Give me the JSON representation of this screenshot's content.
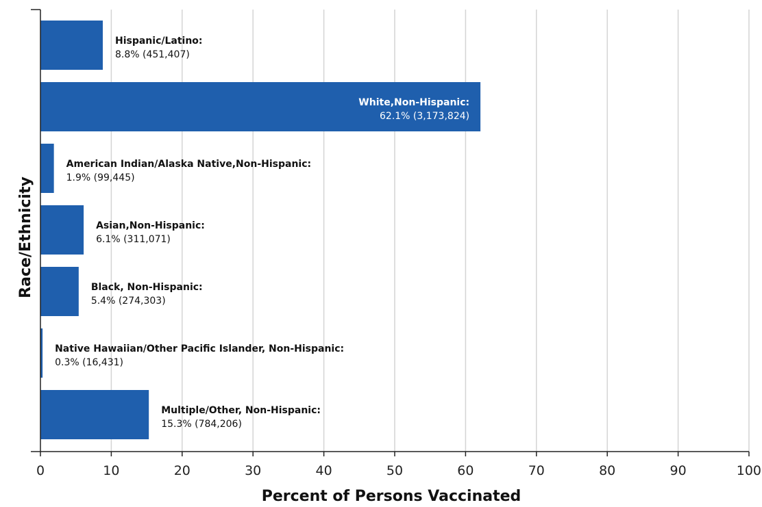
{
  "chart_data": {
    "type": "bar",
    "orientation": "horizontal",
    "title": "",
    "xlabel": "Percent of Persons Vaccinated",
    "ylabel": "Race/Ethnicity",
    "xlim": [
      0,
      100
    ],
    "x_ticks": [
      "0",
      "10",
      "20",
      "30",
      "40",
      "50",
      "60",
      "70",
      "80",
      "90",
      "100"
    ],
    "grid": true,
    "bar_color": "#1f5fad",
    "categories": [
      "Hispanic/Latino:",
      "White,Non-Hispanic:",
      "American Indian/Alaska Native,Non-Hispanic:",
      "Asian,Non-Hispanic:",
      "Black, Non-Hispanic:",
      "Native Hawaiian/Other Pacific Islander, Non-Hispanic:",
      "Multiple/Other, Non-Hispanic:"
    ],
    "values": [
      8.8,
      62.1,
      1.9,
      6.1,
      5.4,
      0.3,
      15.3
    ],
    "counts": [
      451407,
      3173824,
      99445,
      311071,
      274303,
      16431,
      784206
    ],
    "data_labels": [
      "8.8% (451,407)",
      "62.1% (3,173,824)",
      "1.9% (99,445)",
      "6.1% (311,071)",
      "5.4% (274,303)",
      "0.3% (16,431)",
      "15.3% (784,206)"
    ]
  }
}
